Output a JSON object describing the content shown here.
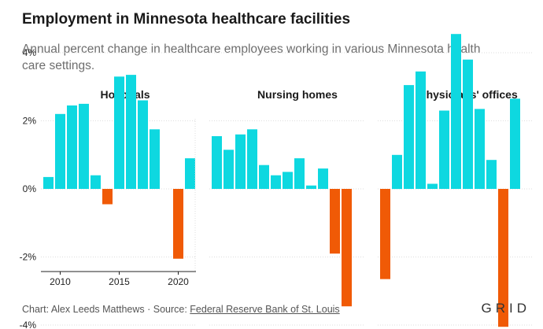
{
  "title": "Employment in Minnesota healthcare facilities",
  "subtitle": "Annual percent change in healthcare employees working in various Minnesota health care settings.",
  "footer": {
    "credit": "Chart: Alex Leeds Matthews · Source: ",
    "source": "Federal Reserve Bank of St. Louis",
    "brand": "GRID"
  },
  "colors": {
    "positive": "#0ed8e0",
    "negative": "#f05a06",
    "grid": "#dddddd",
    "text": "#222222"
  },
  "chart_data": [
    {
      "type": "bar",
      "title": "Hospitals",
      "x": [
        2009,
        2010,
        2011,
        2012,
        2013,
        2014,
        2015,
        2016,
        2017,
        2018,
        2019,
        2020,
        2021
      ],
      "values": [
        0.35,
        2.2,
        2.45,
        2.5,
        0.4,
        -0.45,
        3.3,
        3.35,
        2.6,
        1.75,
        null,
        -2.05,
        0.9
      ],
      "xticks": [
        "2010",
        "2015",
        "2020"
      ],
      "yticks": [
        "4%",
        "2%",
        "0%",
        "-2%",
        "-4%"
      ],
      "ylim": [
        -5,
        4.8
      ],
      "grid": true
    },
    {
      "type": "bar",
      "title": "Nursing homes",
      "x": [
        2009,
        2010,
        2011,
        2012,
        2013,
        2014,
        2015,
        2016,
        2017,
        2018,
        2019,
        2020,
        2021
      ],
      "values": [
        1.55,
        1.15,
        1.6,
        1.75,
        0.7,
        0.4,
        0.5,
        0.9,
        0.1,
        0.6,
        -1.9,
        -3.45,
        null
      ],
      "ylim": [
        -5,
        4.8
      ],
      "grid": true
    },
    {
      "type": "bar",
      "title": "Physicians' offices",
      "x": [
        2009,
        2010,
        2011,
        2012,
        2013,
        2014,
        2015,
        2016,
        2017,
        2018,
        2019,
        2020,
        2021
      ],
      "values": [
        -2.65,
        1.0,
        3.05,
        3.45,
        0.15,
        2.3,
        4.55,
        3.8,
        2.35,
        0.85,
        -4.05,
        2.65,
        null
      ],
      "ylim": [
        -5,
        4.8
      ],
      "grid": true
    }
  ]
}
